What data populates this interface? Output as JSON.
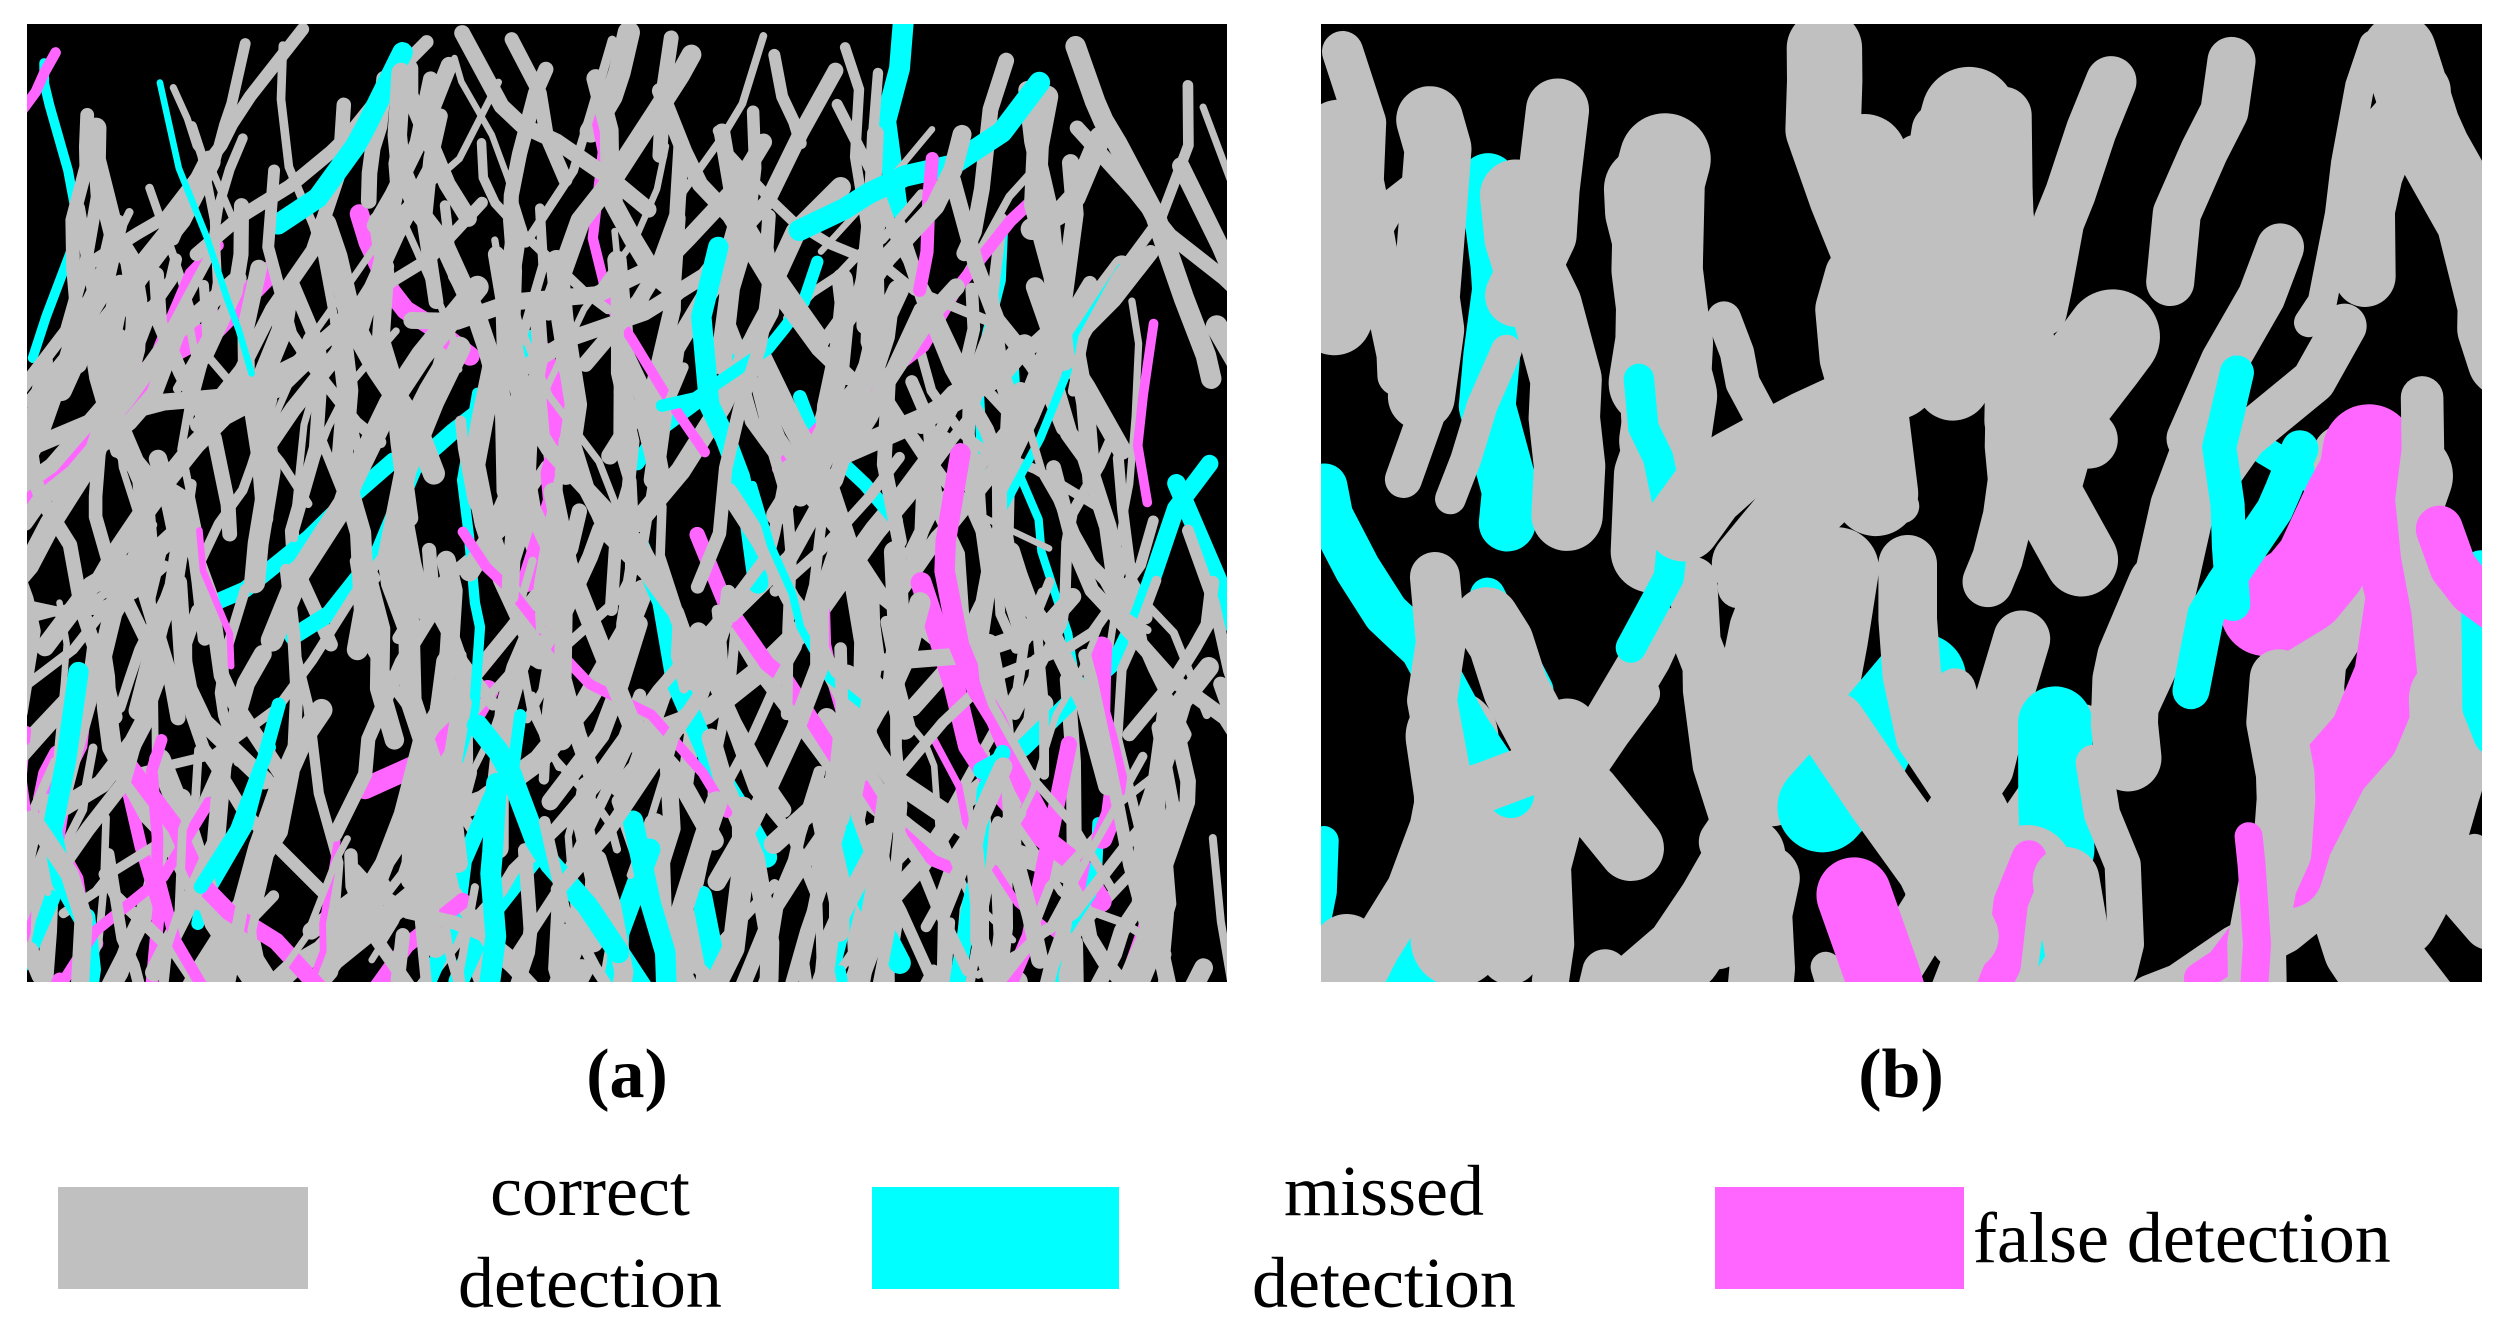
{
  "panels": [
    {
      "label": "(a)"
    },
    {
      "label": "(b)"
    }
  ],
  "legend": [
    {
      "label": "correct detection",
      "color": "#c0c0c0"
    },
    {
      "label": "missed detection",
      "color": "#00ffff"
    },
    {
      "label": "false detection",
      "color": "#ff66ff"
    }
  ]
}
